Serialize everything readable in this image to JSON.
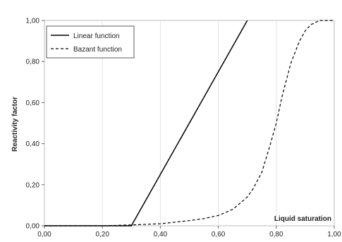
{
  "chart_data": {
    "type": "line",
    "xlabel": "Liquid saturation",
    "ylabel": "Reactivity factor",
    "xlim": [
      0,
      1
    ],
    "ylim": [
      0,
      1
    ],
    "x_ticks": [
      "0,00",
      "0,20",
      "0,40",
      "0,60",
      "0,80",
      "1,00"
    ],
    "y_ticks": [
      "0,00",
      "0,20",
      "0,40",
      "0,60",
      "0,80",
      "1,00"
    ],
    "grid": "vertical",
    "legend_position": "top-left",
    "series": [
      {
        "name": "Linear function",
        "style": "solid",
        "color": "#000000",
        "x": [
          0.0,
          0.3,
          0.7
        ],
        "y": [
          0.0,
          0.0,
          1.0
        ]
      },
      {
        "name": "Bazant function",
        "style": "dashed",
        "color": "#000000",
        "x": [
          0.0,
          0.2,
          0.3,
          0.4,
          0.5,
          0.55,
          0.6,
          0.65,
          0.7,
          0.72,
          0.75,
          0.78,
          0.8,
          0.82,
          0.85,
          0.88,
          0.9,
          0.92,
          0.95,
          0.97,
          1.0
        ],
        "y": [
          0.0,
          0.0,
          0.004,
          0.01,
          0.025,
          0.035,
          0.05,
          0.08,
          0.14,
          0.18,
          0.26,
          0.4,
          0.5,
          0.63,
          0.79,
          0.9,
          0.95,
          0.98,
          1.0,
          1.0,
          1.0
        ]
      }
    ]
  }
}
